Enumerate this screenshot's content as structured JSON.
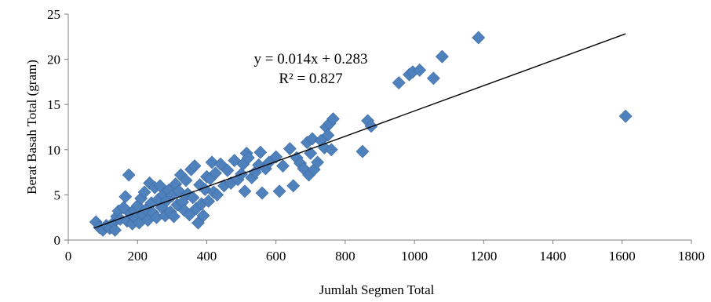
{
  "chart_data": {
    "type": "scatter",
    "xlabel": "Jumlah Segmen Total",
    "ylabel": "Berat Basah Total (gram)",
    "xlim": [
      0,
      1800
    ],
    "ylim": [
      0,
      25
    ],
    "x_ticks": [
      "0",
      "200",
      "400",
      "600",
      "800",
      "1000",
      "1200",
      "1400",
      "1600",
      "1800"
    ],
    "y_ticks": [
      "0",
      "5",
      "10",
      "15",
      "20",
      "25"
    ],
    "grid": false,
    "marker_color": "#4f81bd",
    "trendline": {
      "slope": 0.014,
      "intercept": 0.283,
      "x_range": [
        75,
        1610
      ],
      "color": "#000000"
    },
    "equation": "y = 0.014x + 0.283",
    "r_squared": "R² = 0.827",
    "series": [
      {
        "points": [
          [
            80,
            2.0
          ],
          [
            90,
            1.4
          ],
          [
            100,
            1.1
          ],
          [
            110,
            1.6
          ],
          [
            120,
            1.3
          ],
          [
            130,
            1.9
          ],
          [
            135,
            1.1
          ],
          [
            140,
            2.6
          ],
          [
            145,
            3.2
          ],
          [
            150,
            2.3
          ],
          [
            160,
            3.6
          ],
          [
            165,
            4.8
          ],
          [
            170,
            2.1
          ],
          [
            175,
            7.2
          ],
          [
            180,
            2.9
          ],
          [
            185,
            1.8
          ],
          [
            190,
            3.3
          ],
          [
            195,
            2.4
          ],
          [
            200,
            3.8
          ],
          [
            205,
            1.9
          ],
          [
            210,
            4.6
          ],
          [
            215,
            2.8
          ],
          [
            220,
            5.3
          ],
          [
            225,
            3.4
          ],
          [
            230,
            2.2
          ],
          [
            235,
            6.3
          ],
          [
            240,
            4.1
          ],
          [
            245,
            3.0
          ],
          [
            250,
            5.8
          ],
          [
            255,
            2.5
          ],
          [
            260,
            4.5
          ],
          [
            265,
            6.0
          ],
          [
            270,
            3.6
          ],
          [
            275,
            5.0
          ],
          [
            280,
            2.7
          ],
          [
            285,
            4.4
          ],
          [
            290,
            5.5
          ],
          [
            295,
            3.1
          ],
          [
            300,
            4.9
          ],
          [
            305,
            2.6
          ],
          [
            310,
            6.2
          ],
          [
            315,
            3.9
          ],
          [
            320,
            5.4
          ],
          [
            325,
            7.2
          ],
          [
            330,
            4.2
          ],
          [
            335,
            3.3
          ],
          [
            340,
            6.6
          ],
          [
            345,
            5.1
          ],
          [
            350,
            2.8
          ],
          [
            355,
            7.8
          ],
          [
            360,
            4.7
          ],
          [
            365,
            8.2
          ],
          [
            370,
            3.5
          ],
          [
            375,
            1.9
          ],
          [
            380,
            6.1
          ],
          [
            385,
            4.0
          ],
          [
            390,
            2.7
          ],
          [
            395,
            5.6
          ],
          [
            400,
            7.0
          ],
          [
            405,
            4.3
          ],
          [
            410,
            6.8
          ],
          [
            415,
            8.6
          ],
          [
            420,
            5.3
          ],
          [
            425,
            7.4
          ],
          [
            430,
            5.0
          ],
          [
            440,
            8.4
          ],
          [
            450,
            6.0
          ],
          [
            460,
            7.7
          ],
          [
            470,
            6.3
          ],
          [
            480,
            8.8
          ],
          [
            490,
            6.7
          ],
          [
            500,
            7.3
          ],
          [
            505,
            8.4
          ],
          [
            510,
            5.4
          ],
          [
            515,
            9.6
          ],
          [
            520,
            9.1
          ],
          [
            530,
            6.9
          ],
          [
            540,
            7.5
          ],
          [
            550,
            8.3
          ],
          [
            555,
            9.7
          ],
          [
            560,
            5.2
          ],
          [
            570,
            7.9
          ],
          [
            580,
            8.6
          ],
          [
            600,
            9.2
          ],
          [
            610,
            5.4
          ],
          [
            620,
            8.2
          ],
          [
            640,
            10.1
          ],
          [
            650,
            6.0
          ],
          [
            660,
            9.1
          ],
          [
            670,
            8.5
          ],
          [
            680,
            7.9
          ],
          [
            690,
            10.8
          ],
          [
            695,
            7.2
          ],
          [
            700,
            9.6
          ],
          [
            705,
            11.2
          ],
          [
            710,
            7.8
          ],
          [
            720,
            8.6
          ],
          [
            730,
            11.0
          ],
          [
            740,
            10.2
          ],
          [
            745,
            12.5
          ],
          [
            750,
            11.6
          ],
          [
            755,
            12.9
          ],
          [
            760,
            10.0
          ],
          [
            765,
            13.4
          ],
          [
            850,
            9.8
          ],
          [
            865,
            13.2
          ],
          [
            875,
            12.6
          ],
          [
            955,
            17.4
          ],
          [
            985,
            18.3
          ],
          [
            995,
            18.6
          ],
          [
            1015,
            18.8
          ],
          [
            1055,
            17.9
          ],
          [
            1080,
            20.3
          ],
          [
            1185,
            22.4
          ],
          [
            1610,
            13.7
          ]
        ]
      }
    ]
  }
}
